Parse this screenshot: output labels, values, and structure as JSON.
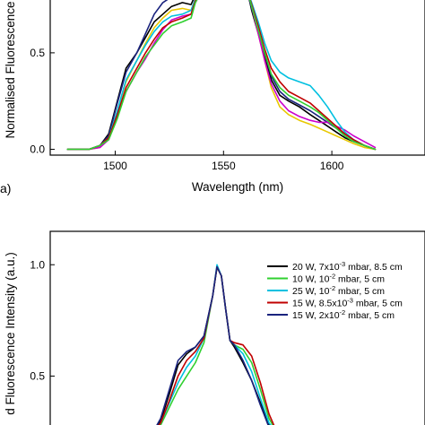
{
  "chart_data": [
    {
      "panel_label": "a)",
      "type": "line",
      "xlabel": "Wavelength (nm)",
      "ylabel": "Normalised Fluorescence",
      "xlim": [
        1470,
        1643
      ],
      "ylim_visible": [
        -0.03,
        0.82
      ],
      "xticks": [
        "1500",
        "1550",
        "1600"
      ],
      "xtick_values": [
        1500,
        1550,
        1600
      ],
      "yticks": [
        "0.0",
        "0.5"
      ],
      "ytick_values": [
        0.0,
        0.5
      ],
      "series": [
        {
          "color": "#000000",
          "x": [
            1478,
            1488,
            1493,
            1497,
            1501,
            1505,
            1510,
            1514,
            1518,
            1522,
            1526,
            1531,
            1535,
            1537,
            1540
          ],
          "y": [
            0,
            0,
            0.02,
            0.08,
            0.25,
            0.42,
            0.5,
            0.58,
            0.66,
            0.7,
            0.74,
            0.76,
            0.75,
            0.8,
            0.82
          ]
        },
        {
          "color": "#e8c800",
          "x": [
            1478,
            1488,
            1493,
            1497,
            1501,
            1505,
            1510,
            1514,
            1518,
            1522,
            1526,
            1531,
            1535,
            1537,
            1540
          ],
          "y": [
            0,
            0,
            0.01,
            0.06,
            0.2,
            0.35,
            0.46,
            0.55,
            0.63,
            0.68,
            0.72,
            0.73,
            0.72,
            0.78,
            0.82
          ]
        },
        {
          "color": "#1a237e",
          "x": [
            1478,
            1488,
            1493,
            1497,
            1501,
            1505,
            1510,
            1514,
            1518,
            1522,
            1526,
            1531,
            1535,
            1537,
            1540
          ],
          "y": [
            0,
            0,
            0.02,
            0.07,
            0.24,
            0.4,
            0.5,
            0.6,
            0.7,
            0.76,
            0.79,
            0.8,
            0.78,
            0.81,
            0.82
          ]
        },
        {
          "color": "#cc00cc",
          "x": [
            1478,
            1488,
            1493,
            1497,
            1501,
            1505,
            1510,
            1514,
            1518,
            1522,
            1526,
            1531,
            1535,
            1537,
            1540
          ],
          "y": [
            0,
            0,
            0.01,
            0.05,
            0.17,
            0.3,
            0.4,
            0.47,
            0.55,
            0.62,
            0.67,
            0.69,
            0.7,
            0.76,
            0.82
          ]
        },
        {
          "color": "#00c0e0",
          "x": [
            1478,
            1488,
            1493,
            1497,
            1501,
            1505,
            1510,
            1514,
            1518,
            1522,
            1526,
            1531,
            1535,
            1537,
            1540
          ],
          "y": [
            0,
            0,
            0.02,
            0.06,
            0.2,
            0.36,
            0.46,
            0.54,
            0.61,
            0.66,
            0.69,
            0.7,
            0.72,
            0.78,
            0.82
          ]
        },
        {
          "color": "#c00000",
          "x": [
            1478,
            1488,
            1493,
            1497,
            1501,
            1505,
            1510,
            1514,
            1518,
            1522,
            1526,
            1531,
            1535,
            1537,
            1540
          ],
          "y": [
            0,
            0,
            0.02,
            0.06,
            0.18,
            0.32,
            0.42,
            0.5,
            0.57,
            0.63,
            0.66,
            0.68,
            0.7,
            0.77,
            0.82
          ]
        },
        {
          "color": "#30d030",
          "x": [
            1478,
            1488,
            1493,
            1497,
            1501,
            1505,
            1510,
            1514,
            1518,
            1522,
            1526,
            1531,
            1535,
            1537,
            1540
          ],
          "y": [
            0,
            0,
            0.02,
            0.05,
            0.16,
            0.3,
            0.4,
            0.48,
            0.54,
            0.6,
            0.64,
            0.66,
            0.68,
            0.76,
            0.82
          ]
        },
        {
          "color": "#000000",
          "x": [
            1561,
            1563,
            1566,
            1569,
            1572,
            1576,
            1580,
            1585,
            1590,
            1594,
            1598,
            1602,
            1606,
            1610,
            1615,
            1620
          ],
          "y": [
            0.82,
            0.72,
            0.6,
            0.48,
            0.36,
            0.28,
            0.25,
            0.22,
            0.18,
            0.15,
            0.12,
            0.09,
            0.06,
            0.04,
            0.02,
            0
          ]
        },
        {
          "color": "#e8c800",
          "x": [
            1561,
            1563,
            1566,
            1569,
            1572,
            1576,
            1580,
            1585,
            1590,
            1594,
            1598,
            1602,
            1606,
            1610,
            1615,
            1620
          ],
          "y": [
            0.82,
            0.74,
            0.6,
            0.46,
            0.32,
            0.22,
            0.18,
            0.15,
            0.13,
            0.11,
            0.09,
            0.07,
            0.05,
            0.03,
            0.01,
            0
          ]
        },
        {
          "color": "#1a237e",
          "x": [
            1561,
            1563,
            1566,
            1569,
            1572,
            1576,
            1580,
            1585,
            1590,
            1594,
            1598,
            1602,
            1606,
            1610,
            1615,
            1620
          ],
          "y": [
            0.82,
            0.73,
            0.62,
            0.5,
            0.38,
            0.3,
            0.26,
            0.23,
            0.2,
            0.17,
            0.14,
            0.11,
            0.08,
            0.05,
            0.02,
            0
          ]
        },
        {
          "color": "#cc00cc",
          "x": [
            1561,
            1563,
            1566,
            1569,
            1572,
            1576,
            1580,
            1585,
            1590,
            1594,
            1598,
            1602,
            1606,
            1610,
            1615,
            1620
          ],
          "y": [
            0.82,
            0.74,
            0.6,
            0.46,
            0.34,
            0.25,
            0.2,
            0.17,
            0.15,
            0.14,
            0.14,
            0.12,
            0.1,
            0.07,
            0.04,
            0.01
          ]
        },
        {
          "color": "#00c0e0",
          "x": [
            1561,
            1563,
            1566,
            1569,
            1572,
            1576,
            1580,
            1585,
            1590,
            1594,
            1598,
            1602,
            1606,
            1610,
            1615,
            1620
          ],
          "y": [
            0.82,
            0.76,
            0.66,
            0.55,
            0.46,
            0.4,
            0.37,
            0.35,
            0.33,
            0.28,
            0.22,
            0.15,
            0.09,
            0.05,
            0.02,
            0
          ]
        },
        {
          "color": "#c00000",
          "x": [
            1561,
            1563,
            1566,
            1569,
            1572,
            1576,
            1580,
            1585,
            1590,
            1594,
            1598,
            1602,
            1606,
            1610,
            1615,
            1620
          ],
          "y": [
            0.82,
            0.75,
            0.64,
            0.52,
            0.42,
            0.35,
            0.3,
            0.27,
            0.24,
            0.2,
            0.16,
            0.12,
            0.08,
            0.05,
            0.02,
            0
          ]
        },
        {
          "color": "#30d030",
          "x": [
            1561,
            1563,
            1566,
            1569,
            1572,
            1576,
            1580,
            1585,
            1590,
            1594,
            1598,
            1602,
            1606,
            1610,
            1615,
            1620
          ],
          "y": [
            0.82,
            0.74,
            0.62,
            0.5,
            0.39,
            0.32,
            0.28,
            0.25,
            0.22,
            0.19,
            0.15,
            0.11,
            0.07,
            0.04,
            0.02,
            0
          ]
        }
      ]
    },
    {
      "panel_label": "",
      "type": "line",
      "xlabel": "",
      "ylabel": "d Fluorescence Intensity (a.u.)",
      "xlim": [
        1470,
        1643
      ],
      "ylim_visible": [
        0.24,
        1.15
      ],
      "yticks": [
        "0.5",
        "1.0"
      ],
      "ytick_values": [
        0.5,
        1.0
      ],
      "legend": "top-right",
      "series": [
        {
          "name": "20 W, 7x10⁻³ mbar, 8.5 cm",
          "label_main": "20 W, 7x10",
          "label_sup": "-3",
          "label_tail": " mbar, 8.5 cm",
          "color": "#000000",
          "x": [
            1517,
            1521,
            1525,
            1529,
            1533,
            1537,
            1541,
            1545,
            1547,
            1549,
            1551,
            1553,
            1555,
            1559,
            1563,
            1567,
            1571,
            1575
          ],
          "y": [
            0.24,
            0.3,
            0.42,
            0.55,
            0.6,
            0.63,
            0.68,
            0.86,
            0.99,
            0.95,
            0.8,
            0.66,
            0.63,
            0.56,
            0.48,
            0.38,
            0.28,
            0.24
          ]
        },
        {
          "name": "10 W, 10⁻² mbar, 5 cm",
          "label_main": "10 W, 10",
          "label_sup": "-2",
          "label_tail": " mbar, 5 cm",
          "color": "#30d030",
          "x": [
            1517,
            1521,
            1525,
            1529,
            1533,
            1537,
            1541,
            1545,
            1547,
            1549,
            1551,
            1553,
            1555,
            1559,
            1563,
            1567,
            1571,
            1575
          ],
          "y": [
            0.24,
            0.28,
            0.36,
            0.44,
            0.5,
            0.56,
            0.65,
            0.86,
            0.99,
            0.95,
            0.8,
            0.66,
            0.64,
            0.62,
            0.56,
            0.44,
            0.31,
            0.24
          ]
        },
        {
          "name": "25 W, 10⁻² mbar, 5 cm",
          "label_main": "25 W, 10",
          "label_sup": "-2",
          "label_tail": " mbar, 5 cm",
          "color": "#00c0e0",
          "x": [
            1517,
            1521,
            1525,
            1529,
            1533,
            1537,
            1541,
            1545,
            1547,
            1549,
            1551,
            1553,
            1555,
            1559,
            1563,
            1567,
            1571,
            1575
          ],
          "y": [
            0.24,
            0.29,
            0.38,
            0.47,
            0.54,
            0.59,
            0.67,
            0.86,
            1.0,
            0.95,
            0.8,
            0.66,
            0.64,
            0.6,
            0.52,
            0.4,
            0.29,
            0.24
          ]
        },
        {
          "name": "15 W, 8.5x10⁻³ mbar, 5 cm",
          "label_main": "15 W, 8.5x10",
          "label_sup": "-3",
          "label_tail": " mbar, 5 cm",
          "color": "#c00000",
          "x": [
            1517,
            1521,
            1525,
            1529,
            1533,
            1537,
            1541,
            1545,
            1547,
            1549,
            1551,
            1553,
            1555,
            1559,
            1563,
            1567,
            1571,
            1575
          ],
          "y": [
            0.24,
            0.29,
            0.39,
            0.5,
            0.57,
            0.61,
            0.67,
            0.86,
            0.99,
            0.95,
            0.8,
            0.66,
            0.65,
            0.64,
            0.59,
            0.47,
            0.33,
            0.24
          ]
        },
        {
          "name": "15 W, 2x10⁻² mbar, 5 cm",
          "label_main": "15 W, 2x10",
          "label_sup": "-2",
          "label_tail": " mbar, 5 cm",
          "color": "#1a237e",
          "x": [
            1517,
            1521,
            1525,
            1529,
            1533,
            1537,
            1541,
            1545,
            1547,
            1549,
            1551,
            1553,
            1555,
            1559,
            1563,
            1567,
            1571,
            1575
          ],
          "y": [
            0.24,
            0.31,
            0.44,
            0.57,
            0.61,
            0.63,
            0.68,
            0.86,
            0.99,
            0.95,
            0.8,
            0.66,
            0.64,
            0.57,
            0.48,
            0.37,
            0.27,
            0.24
          ]
        }
      ]
    }
  ]
}
